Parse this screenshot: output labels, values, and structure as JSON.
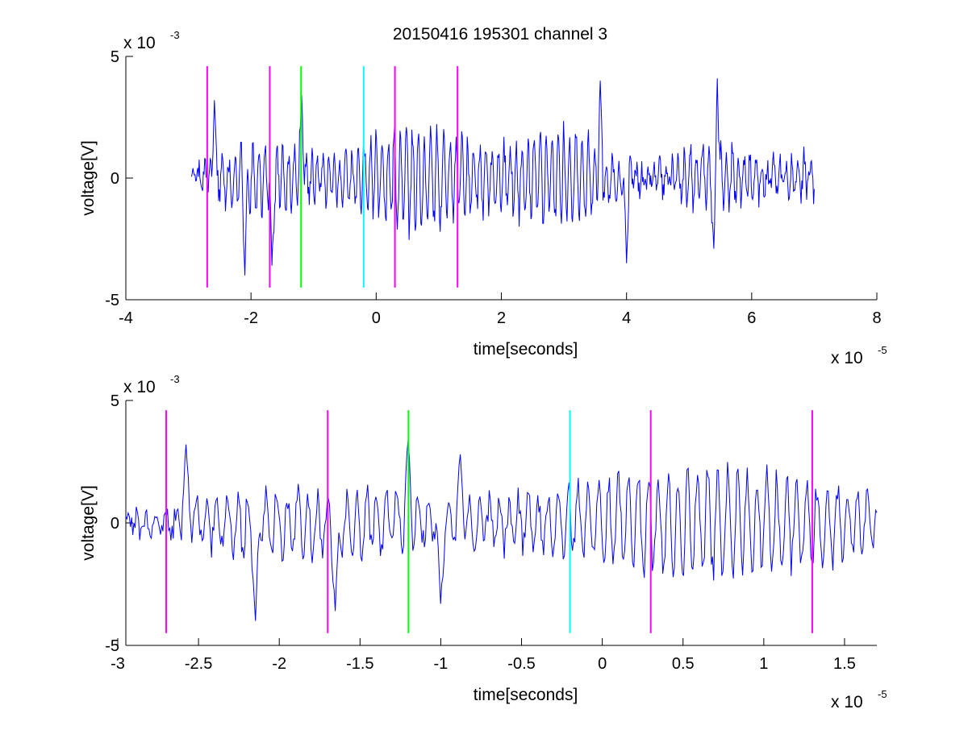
{
  "chart_data": [
    {
      "type": "line",
      "title": "20150416 195301 channel 3",
      "xlabel": "time[seconds]",
      "ylabel": "voltage[V]",
      "xlim": [
        -4,
        8
      ],
      "ylim": [
        -5,
        5
      ],
      "x_multiplier": "x 10",
      "x_exponent": "-5",
      "y_multiplier": "x 10",
      "y_exponent": "-3",
      "x_ticks": [
        -4,
        -2,
        0,
        2,
        4,
        6,
        8
      ],
      "x_tick_labels": [
        "-4",
        "-2",
        "0",
        "2",
        "4",
        "6",
        "8"
      ],
      "y_ticks": [
        -5,
        0,
        5
      ],
      "y_tick_labels": [
        "-5",
        "0",
        "5"
      ],
      "grid": false,
      "legend": "none",
      "series": [
        {
          "color": "#0000ff",
          "x_range": [
            -2.95,
            7.0
          ],
          "n_points": 900,
          "y_range": [
            -4.0,
            4.1
          ],
          "peaks": [
            [
              -2.58,
              3.2
            ],
            [
              -1.19,
              3.4
            ],
            [
              3.58,
              4.0
            ],
            [
              5.45,
              4.1
            ]
          ],
          "troughs": [
            [
              -2.1,
              -4.0
            ],
            [
              -1.67,
              -3.6
            ],
            [
              4.0,
              -3.5
            ],
            [
              5.4,
              -2.9
            ]
          ]
        }
      ],
      "markers": [
        {
          "x": -2.7,
          "color": "#ff00ff",
          "y_range": [
            -4.5,
            4.6
          ]
        },
        {
          "x": -1.7,
          "color": "#ff00ff",
          "y_range": [
            -4.5,
            4.6
          ]
        },
        {
          "x": -1.2,
          "color": "#00ff00",
          "y_range": [
            -4.5,
            4.6
          ]
        },
        {
          "x": -0.2,
          "color": "#00ffff",
          "y_range": [
            -4.5,
            4.6
          ]
        },
        {
          "x": 0.3,
          "color": "#ff00ff",
          "y_range": [
            -4.5,
            4.6
          ]
        },
        {
          "x": 1.3,
          "color": "#ff00ff",
          "y_range": [
            -4.5,
            4.6
          ]
        }
      ]
    },
    {
      "type": "line",
      "title": "",
      "xlabel": "time[seconds]",
      "ylabel": "voltage[V]",
      "xlim": [
        -2.95,
        1.7
      ],
      "ylim": [
        -5,
        5
      ],
      "x_multiplier": "x 10",
      "x_exponent": "-5",
      "y_multiplier": "x 10",
      "y_exponent": "-3",
      "x_ticks": [
        -3,
        -2.5,
        -2,
        -1.5,
        -1,
        -0.5,
        0,
        0.5,
        1,
        1.5
      ],
      "x_tick_labels": [
        "-3",
        "-2.5",
        "-2",
        "-1.5",
        "-1",
        "-0.5",
        "0",
        "0.5",
        "1",
        "1.5"
      ],
      "y_ticks": [
        -5,
        0,
        5
      ],
      "y_tick_labels": [
        "-5",
        "0",
        "5"
      ],
      "grid": false,
      "legend": "none",
      "series": [
        {
          "color": "#0000ff",
          "x_range": [
            -2.95,
            1.7
          ],
          "n_points": 650,
          "y_range": [
            -4.0,
            3.4
          ],
          "peaks": [
            [
              -2.58,
              3.2
            ],
            [
              -1.2,
              3.4
            ],
            [
              -0.88,
              2.8
            ]
          ],
          "troughs": [
            [
              -2.15,
              -4.0
            ],
            [
              -1.65,
              -3.6
            ],
            [
              -1.0,
              -3.3
            ]
          ]
        }
      ],
      "markers": [
        {
          "x": -2.7,
          "color": "#ff00ff",
          "y_range": [
            -4.5,
            4.6
          ]
        },
        {
          "x": -1.7,
          "color": "#ff00ff",
          "y_range": [
            -4.5,
            4.6
          ]
        },
        {
          "x": -1.2,
          "color": "#00ff00",
          "y_range": [
            -4.5,
            4.6
          ]
        },
        {
          "x": -0.2,
          "color": "#00ffff",
          "y_range": [
            -4.5,
            4.6
          ]
        },
        {
          "x": 0.3,
          "color": "#ff00ff",
          "y_range": [
            -4.5,
            4.6
          ]
        },
        {
          "x": 1.3,
          "color": "#ff00ff",
          "y_range": [
            -4.5,
            4.6
          ]
        }
      ]
    }
  ]
}
